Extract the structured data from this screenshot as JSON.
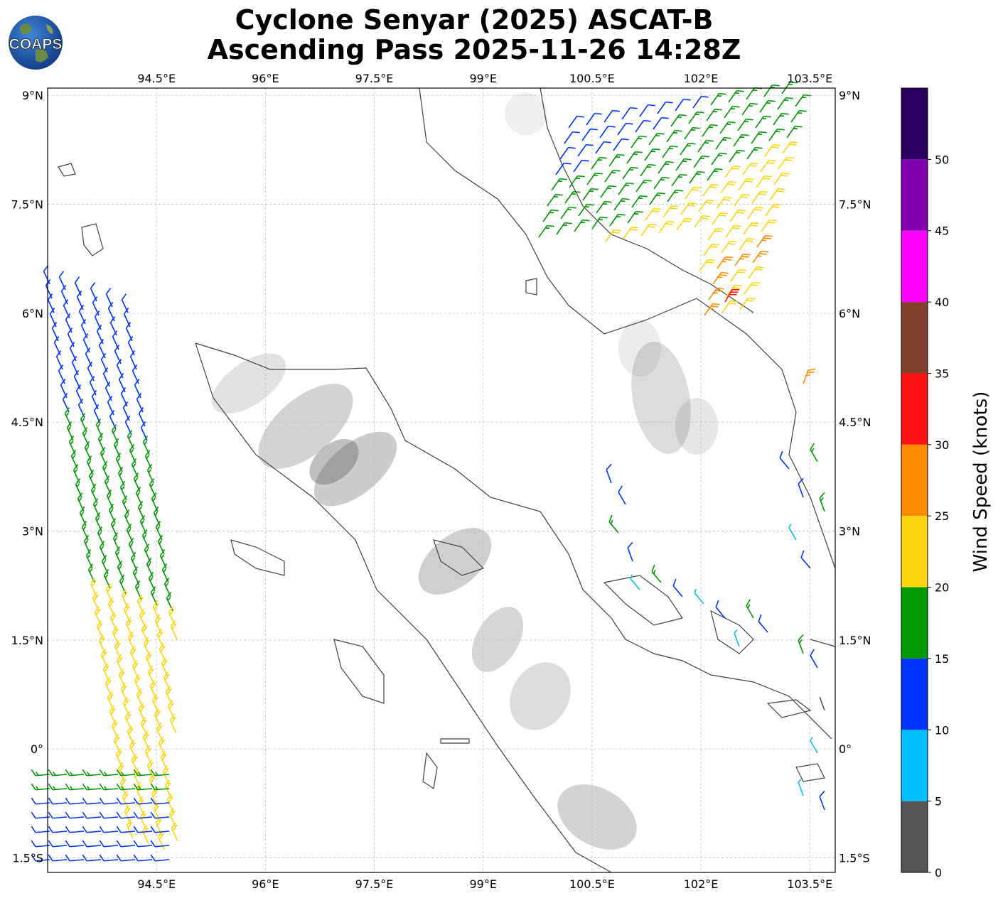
{
  "title": {
    "line1": "Cyclone Senyar (2025) ASCAT-B",
    "line2": "Ascending Pass 2025-11-26 14:28Z"
  },
  "logo": {
    "text": "COAPS",
    "icon": "globe-logo-icon"
  },
  "map": {
    "lon_range": [
      93.0,
      103.85
    ],
    "lat_range": [
      -1.7,
      9.1
    ],
    "lon_ticks": [
      "94.5°E",
      "96°E",
      "97.5°E",
      "99°E",
      "100.5°E",
      "102°E",
      "103.5°E"
    ],
    "lon_tick_values": [
      94.5,
      96,
      97.5,
      99,
      100.5,
      102,
      103.5
    ],
    "lat_ticks": [
      "9°N",
      "7.5°N",
      "6°N",
      "4.5°N",
      "3°N",
      "1.5°N",
      "0°",
      "1.5°S"
    ],
    "lat_tick_values": [
      9,
      7.5,
      6,
      4.5,
      3,
      1.5,
      0,
      -1.5
    ],
    "grid": true,
    "background": "terrain-grayscale",
    "coastline_color": "#404040",
    "gridline_color": "#bbbbbb"
  },
  "colorbar": {
    "label": "Wind Speed (knots)",
    "ticks": [
      "0",
      "5",
      "10",
      "15",
      "20",
      "25",
      "30",
      "35",
      "40",
      "45",
      "50"
    ],
    "bins": [
      {
        "min": 0,
        "max": 5,
        "color": "#555555"
      },
      {
        "min": 5,
        "max": 10,
        "color": "#00bfff"
      },
      {
        "min": 10,
        "max": 15,
        "color": "#0033ff"
      },
      {
        "min": 15,
        "max": 20,
        "color": "#009900"
      },
      {
        "min": 20,
        "max": 25,
        "color": "#ffd511"
      },
      {
        "min": 25,
        "max": 30,
        "color": "#ff8c00"
      },
      {
        "min": 30,
        "max": 35,
        "color": "#ff1111"
      },
      {
        "min": 35,
        "max": 40,
        "color": "#80402a"
      },
      {
        "min": 40,
        "max": 45,
        "color": "#ff00ff"
      },
      {
        "min": 45,
        "max": 50,
        "color": "#8000b0"
      },
      {
        "min": 50,
        "max": 55,
        "color": "#2a0060"
      }
    ],
    "range": [
      0,
      55
    ]
  }
}
